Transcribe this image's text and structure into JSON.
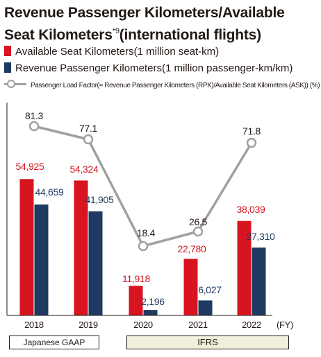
{
  "header": {
    "title_line1": "Revenue Passenger Kilometers/Available",
    "title_line2": "Seat Kilometers",
    "title_note": "*9",
    "title_line2_suffix": "(international flights)"
  },
  "legend": {
    "ask": "Available Seat Kilometers(1 million seat-km)",
    "rpk": "Revenue Passenger Kilometers(1 million passenger-km/km)",
    "load_factor": "Passenger Load Factor(= Revenue Passenger Kilometers (RPK)/Available Seat Kilometers (ASK)) (%)"
  },
  "colors": {
    "ask": "#d7141f",
    "rpk": "#1f3a60",
    "load_factor": "#9fa0a0",
    "rpk_label": "#1f3a60",
    "ask_label": "#d7141f"
  },
  "chart_data": {
    "type": "bar",
    "categories": [
      "2018",
      "2019",
      "2020",
      "2021",
      "2022"
    ],
    "x_unit": "(FY)",
    "series": [
      {
        "name": "Available Seat Kilometers(1 million seat-km)",
        "values": [
          54925,
          54324,
          11918,
          22780,
          38039
        ],
        "labels": [
          "54,925",
          "54,324",
          "11,918",
          "22,780",
          "38,039"
        ]
      },
      {
        "name": "Revenue Passenger Kilometers(1 million passenger-km/km)",
        "values": [
          44659,
          41905,
          2196,
          6027,
          27310
        ],
        "labels": [
          "44,659",
          "41,905",
          "2,196",
          "6,027",
          "27,310"
        ]
      },
      {
        "name": "Passenger Load Factor(= Revenue Passenger Kilometers (RPK)/Available Seat Kilometers (ASK)) (%)",
        "type": "line",
        "values": [
          81.3,
          77.1,
          18.4,
          26.5,
          71.8
        ],
        "labels": [
          "81.3",
          "77.1",
          "18.4",
          "26.5",
          "71.8"
        ]
      }
    ],
    "bar_ylim": [
      0,
      70000
    ],
    "line_ylim": [
      0,
      100
    ],
    "grid": false
  },
  "periods": {
    "gaap": "Japanese GAAP",
    "ifrs": "IFRS"
  }
}
